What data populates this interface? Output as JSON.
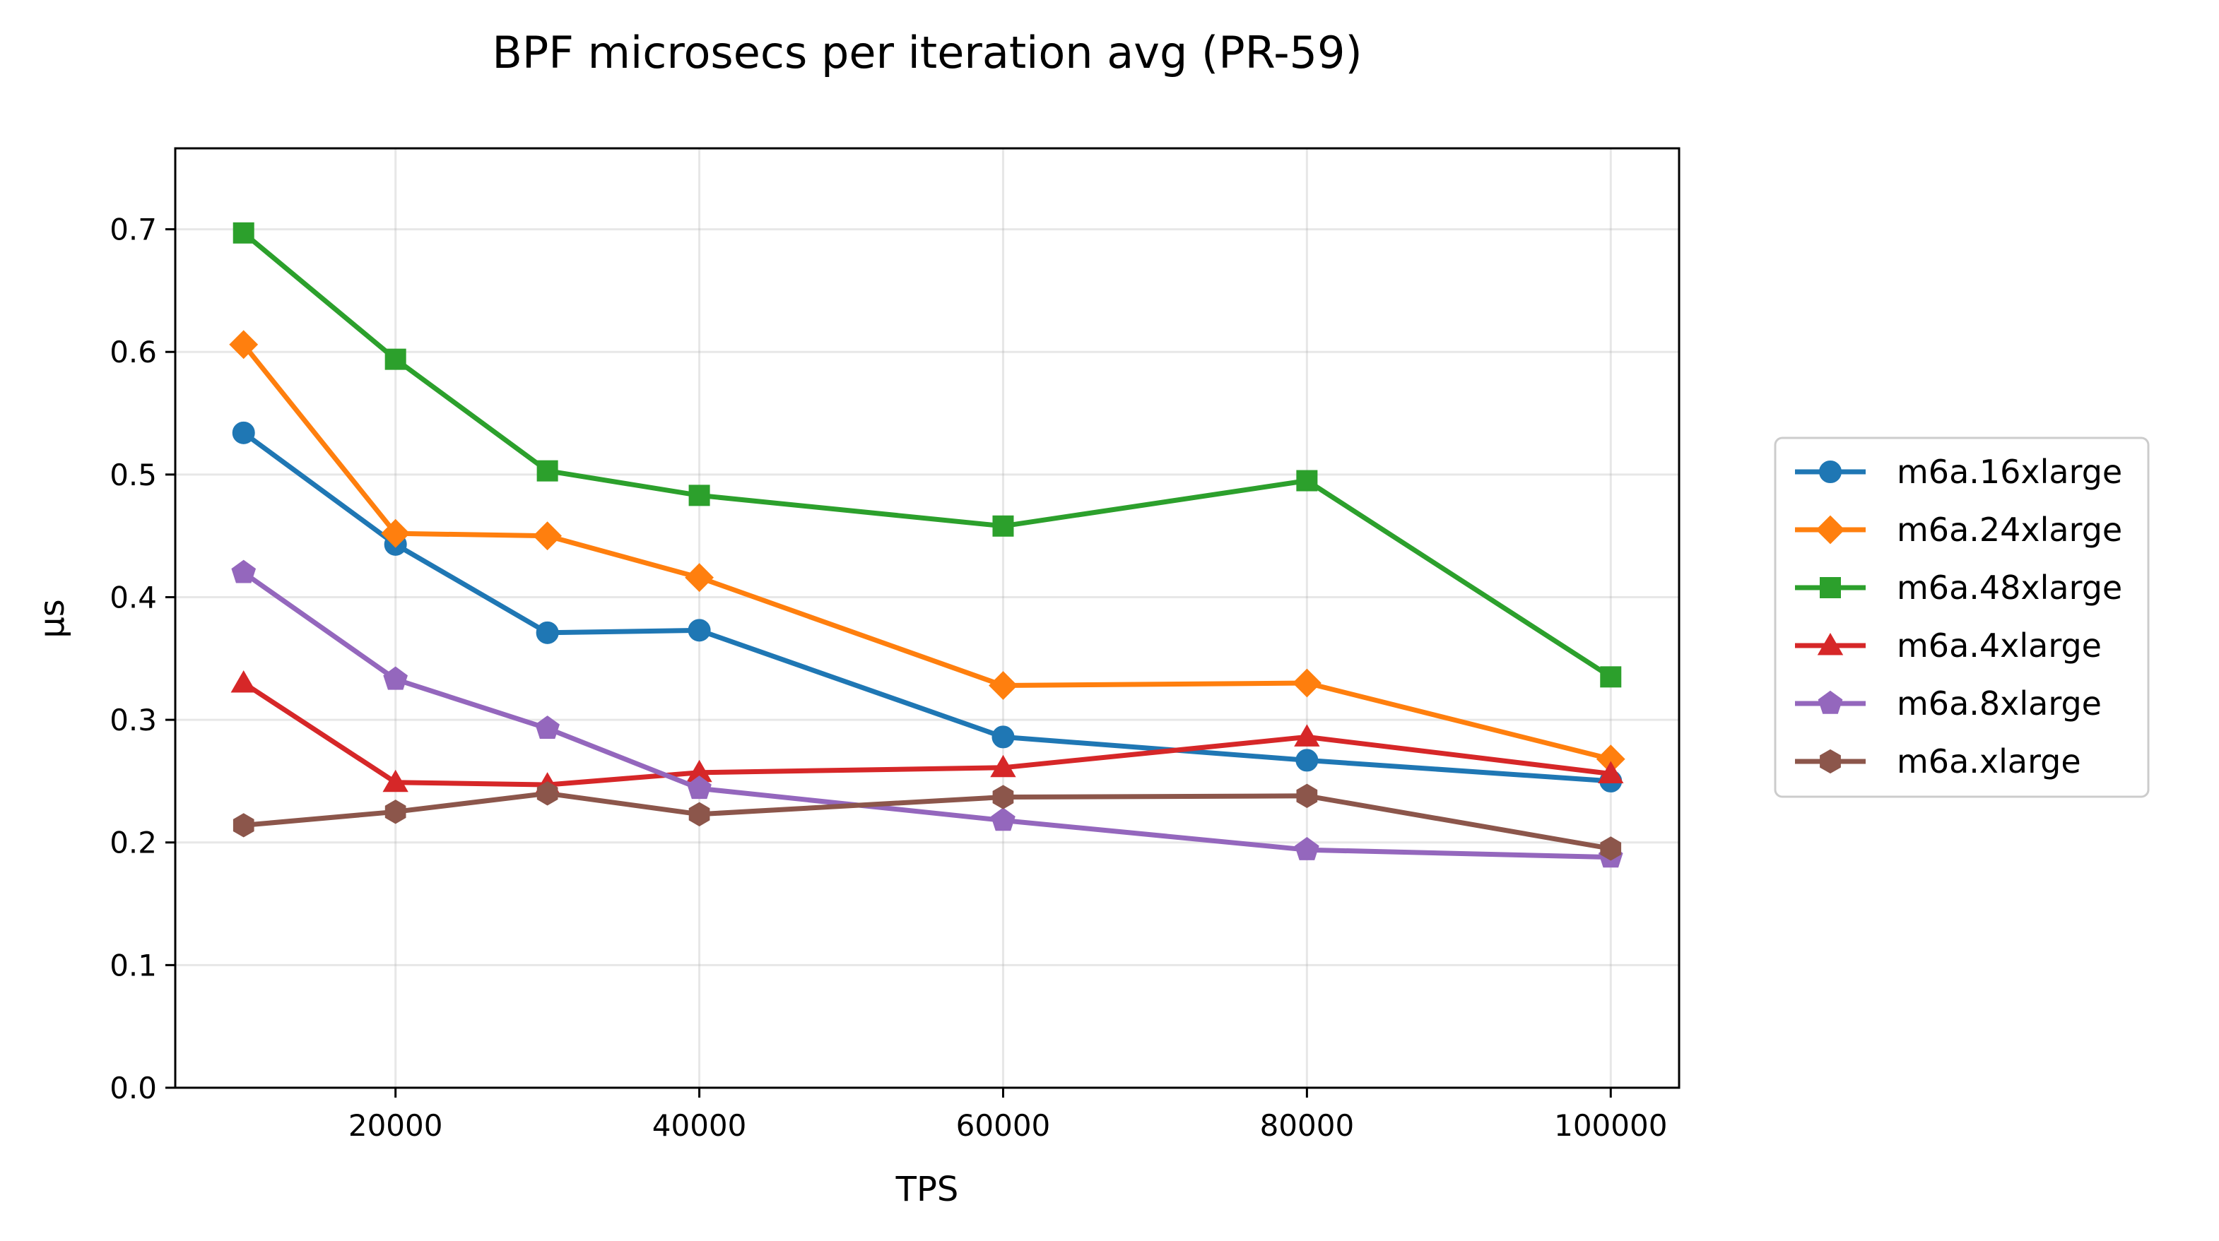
{
  "chart_data": {
    "type": "line",
    "title": "BPF microsecs per iteration avg (PR-59)",
    "xlabel": "TPS",
    "ylabel": "µs",
    "xlim": [
      5500,
      104500
    ],
    "ylim": [
      0.0,
      0.766
    ],
    "xticks": [
      20000,
      40000,
      60000,
      80000,
      100000
    ],
    "xtick_labels": [
      "20000",
      "40000",
      "60000",
      "80000",
      "100000"
    ],
    "yticks": [
      0.0,
      0.1,
      0.2,
      0.3,
      0.4,
      0.5,
      0.6,
      0.7
    ],
    "ytick_labels": [
      "0.0",
      "0.1",
      "0.2",
      "0.3",
      "0.4",
      "0.5",
      "0.6",
      "0.7"
    ],
    "grid": true,
    "legend_position": "outside-right",
    "x": [
      10000,
      20000,
      30000,
      40000,
      60000,
      80000,
      100000
    ],
    "series": [
      {
        "name": "m6a.16xlarge",
        "color": "#1f77b4",
        "marker": "circle",
        "values": [
          0.534,
          0.443,
          0.371,
          0.373,
          0.286,
          0.267,
          0.25
        ]
      },
      {
        "name": "m6a.24xlarge",
        "color": "#ff7f0e",
        "marker": "diamond",
        "values": [
          0.606,
          0.452,
          0.45,
          0.416,
          0.328,
          0.33,
          0.268
        ]
      },
      {
        "name": "m6a.48xlarge",
        "color": "#2ca02c",
        "marker": "square",
        "values": [
          0.697,
          0.594,
          0.503,
          0.483,
          0.458,
          0.495,
          0.335
        ]
      },
      {
        "name": "m6a.4xlarge",
        "color": "#d62728",
        "marker": "triangle",
        "values": [
          0.33,
          0.249,
          0.247,
          0.257,
          0.261,
          0.286,
          0.256
        ]
      },
      {
        "name": "m6a.8xlarge",
        "color": "#9467bd",
        "marker": "pentagon",
        "values": [
          0.42,
          0.333,
          0.293,
          0.244,
          0.218,
          0.194,
          0.188
        ]
      },
      {
        "name": "m6a.xlarge",
        "color": "#8c564b",
        "marker": "hexagon",
        "values": [
          0.214,
          0.225,
          0.24,
          0.223,
          0.237,
          0.238,
          0.195
        ]
      }
    ]
  }
}
